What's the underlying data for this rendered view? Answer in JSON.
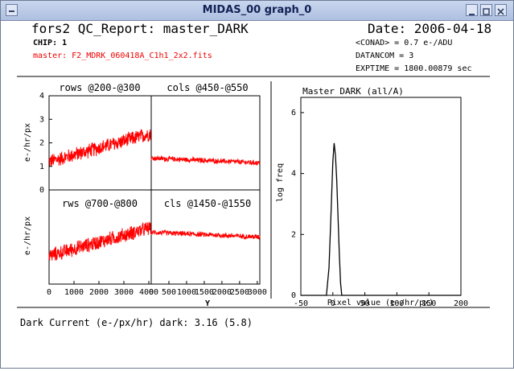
{
  "window": {
    "title": "MIDAS_00 graph_0",
    "controls": [
      "menu-icon",
      "minimize-icon",
      "maximize-icon",
      "close-icon"
    ]
  },
  "header": {
    "report_title": "fors2 QC_Report: master_DARK",
    "date": "Date: 2006-04-18",
    "chip": "CHIP: 1",
    "master_file": "master: F2_MDRK_060418A_C1h1_2x2.fits",
    "conad": "<CONAD> = 0.7 e-/ADU",
    "datancom": "DATANCOM = 3",
    "exptime": "EXPTIME = 1800.00879 sec",
    "file_color": "#ee0000"
  },
  "footer": {
    "dark_current": "Dark Current (e-/px/hr)  dark: 3.16 (5.8)"
  },
  "chart_data": [
    {
      "type": "line",
      "title": "rows @200-@300",
      "ylabel": "e-/hr/px",
      "xlim": [
        0,
        4096
      ],
      "ylim": [
        0,
        4
      ],
      "yticks": [
        0,
        1,
        2,
        3,
        4
      ],
      "color": "#ff0000",
      "trend": {
        "x": [
          0,
          4096
        ],
        "y": [
          1.2,
          2.4
        ],
        "noise": 0.35
      }
    },
    {
      "type": "line",
      "title": "cols @450-@550",
      "xlim": [
        0,
        3072
      ],
      "ylim": [
        0,
        4
      ],
      "color": "#ff0000",
      "trend": {
        "x": [
          0,
          3072
        ],
        "y": [
          1.35,
          1.15
        ],
        "noise": 0.12
      }
    },
    {
      "type": "line",
      "title": "rws @700-@800",
      "ylabel": "e-/hr/px",
      "xlim": [
        0,
        4096
      ],
      "xticks": [
        0,
        1000,
        2000,
        3000,
        4000
      ],
      "ylim": [
        0,
        4
      ],
      "color": "#ff0000",
      "trend": {
        "x": [
          0,
          4096
        ],
        "y": [
          1.2,
          2.4
        ],
        "noise": 0.35
      }
    },
    {
      "type": "line",
      "title": "cls @1450-@1550",
      "xlim": [
        0,
        3072
      ],
      "xticks": [
        0,
        500,
        1000,
        1500,
        2000,
        2500,
        3000
      ],
      "xlabel": "Y",
      "ylim": [
        0,
        4
      ],
      "color": "#ff0000",
      "trend": {
        "x": [
          0,
          3072
        ],
        "y": [
          2.2,
          2.0
        ],
        "noise": 0.12
      }
    },
    {
      "type": "line",
      "title": "Master DARK (all/A)",
      "xlabel": "Pixel value (e-/hr/px)",
      "ylabel": "log freq",
      "xlim": [
        -50,
        200
      ],
      "ylim": [
        0,
        6.5
      ],
      "xticks": [
        -50,
        0,
        50,
        100,
        150,
        200
      ],
      "yticks": [
        0,
        2,
        4,
        6
      ],
      "color": "#000000",
      "x": [
        -50,
        -10,
        -6,
        -3,
        0,
        2,
        4,
        6,
        8,
        10,
        12,
        14,
        200
      ],
      "y": [
        0,
        0,
        0.9,
        2.6,
        4.4,
        5.0,
        4.6,
        3.8,
        2.6,
        1.4,
        0.4,
        0,
        0
      ]
    }
  ]
}
